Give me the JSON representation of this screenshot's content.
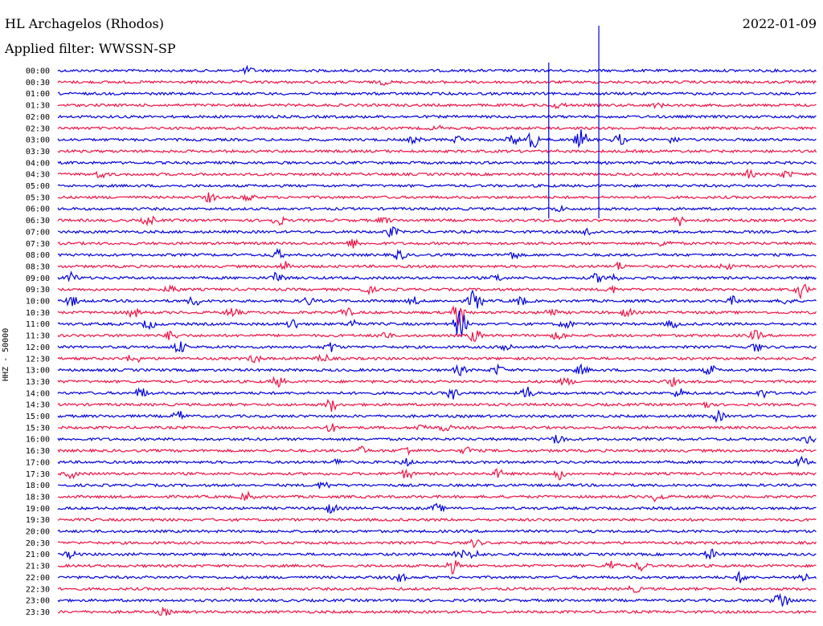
{
  "header": {
    "station": "HL Archagelos (Rhodos)",
    "date": "2022-01-09",
    "filter": "Applied filter: WWSSN-SP"
  },
  "channel_label": "HHZ - 50000",
  "colors": {
    "even_trace": "#0000dd",
    "odd_trace": "#ee1144",
    "text": "#000000"
  },
  "chart_data": {
    "type": "line",
    "title": "HL Archagelos (Rhodos)",
    "subtitle": "Applied filter: WWSSN-SP",
    "ylabel": "HHZ - 50000",
    "xlabel": "",
    "trace_interval_minutes": 30,
    "categories": [
      "00:00",
      "00:30",
      "01:00",
      "01:30",
      "02:00",
      "02:30",
      "03:00",
      "03:30",
      "04:00",
      "04:30",
      "05:00",
      "05:30",
      "06:00",
      "06:30",
      "07:00",
      "07:30",
      "08:00",
      "08:30",
      "09:00",
      "09:30",
      "10:00",
      "10:30",
      "11:00",
      "11:30",
      "12:00",
      "12:30",
      "13:00",
      "13:30",
      "14:00",
      "14:30",
      "15:00",
      "15:30",
      "16:00",
      "16:30",
      "17:00",
      "17:30",
      "18:00",
      "18:30",
      "19:00",
      "19:30",
      "20:00",
      "20:30",
      "21:00",
      "21:30",
      "22:00",
      "22:30",
      "23:00",
      "23:30"
    ],
    "series": [
      {
        "name": "00:00",
        "events": [
          [
            0.25,
            1.0
          ]
        ]
      },
      {
        "name": "00:30",
        "events": [
          [
            0.43,
            0.6
          ]
        ]
      },
      {
        "name": "01:00",
        "events": []
      },
      {
        "name": "01:30",
        "events": [
          [
            0.66,
            0.9
          ],
          [
            0.79,
            0.6
          ]
        ]
      },
      {
        "name": "02:00",
        "events": []
      },
      {
        "name": "02:30",
        "events": [
          [
            0.5,
            0.6
          ]
        ]
      },
      {
        "name": "03:00",
        "events": [
          [
            0.47,
            1.0
          ],
          [
            0.53,
            1.2
          ],
          [
            0.6,
            1.5
          ],
          [
            0.625,
            3.0
          ],
          [
            0.69,
            3.0
          ],
          [
            0.74,
            1.6
          ],
          [
            0.81,
            0.9
          ]
        ]
      },
      {
        "name": "03:30",
        "events": []
      },
      {
        "name": "04:00",
        "events": []
      },
      {
        "name": "04:30",
        "events": [
          [
            0.057,
            1.2
          ],
          [
            0.91,
            1.2
          ],
          [
            0.96,
            1.1
          ]
        ]
      },
      {
        "name": "05:00",
        "events": []
      },
      {
        "name": "05:30",
        "events": [
          [
            0.2,
            1.4
          ],
          [
            0.25,
            1.2
          ]
        ]
      },
      {
        "name": "06:00",
        "events": [
          [
            0.66,
            0.8
          ]
        ]
      },
      {
        "name": "06:30",
        "events": [
          [
            0.12,
            1.5
          ],
          [
            0.29,
            1.6
          ],
          [
            0.43,
            0.9
          ],
          [
            0.82,
            1.5
          ]
        ]
      },
      {
        "name": "07:00",
        "events": [
          [
            0.44,
            1.6
          ],
          [
            0.7,
            1.2
          ]
        ]
      },
      {
        "name": "07:30",
        "events": [
          [
            0.39,
            1.4
          ],
          [
            0.8,
            1.1
          ]
        ]
      },
      {
        "name": "08:00",
        "events": [
          [
            0.29,
            1.4
          ],
          [
            0.45,
            1.6
          ],
          [
            0.6,
            1.2
          ]
        ]
      },
      {
        "name": "08:30",
        "events": [
          [
            0.3,
            1.5
          ],
          [
            0.74,
            1.2
          ],
          [
            0.88,
            1.0
          ]
        ]
      },
      {
        "name": "09:00",
        "events": [
          [
            0.018,
            1.6
          ],
          [
            0.29,
            2.0
          ],
          [
            0.58,
            1.0
          ],
          [
            0.71,
            1.3
          ],
          [
            0.73,
            1.4
          ]
        ]
      },
      {
        "name": "09:30",
        "events": [
          [
            0.15,
            1.3
          ],
          [
            0.41,
            1.0
          ],
          [
            0.73,
            1.0
          ],
          [
            0.98,
            2.5
          ]
        ]
      },
      {
        "name": "10:00",
        "events": [
          [
            0.018,
            1.6
          ],
          [
            0.18,
            1.5
          ],
          [
            0.33,
            1.2
          ],
          [
            0.47,
            1.1
          ],
          [
            0.55,
            4.0
          ],
          [
            0.61,
            1.4
          ],
          [
            0.89,
            1.2
          ],
          [
            0.96,
            1.1
          ]
        ]
      },
      {
        "name": "10:30",
        "events": [
          [
            0.1,
            1.5
          ],
          [
            0.23,
            1.5
          ],
          [
            0.38,
            1.4
          ],
          [
            0.53,
            5.0
          ],
          [
            0.65,
            1.3
          ],
          [
            0.75,
            1.3
          ]
        ]
      },
      {
        "name": "11:00",
        "events": [
          [
            0.12,
            1.5
          ],
          [
            0.31,
            1.8
          ],
          [
            0.39,
            1.2
          ],
          [
            0.53,
            5.0
          ],
          [
            0.67,
            1.4
          ],
          [
            0.81,
            1.2
          ]
        ]
      },
      {
        "name": "11:30",
        "events": [
          [
            0.15,
            1.6
          ],
          [
            0.43,
            1.2
          ],
          [
            0.55,
            2.0
          ],
          [
            0.66,
            1.5
          ],
          [
            0.92,
            1.4
          ]
        ]
      },
      {
        "name": "12:00",
        "events": [
          [
            0.16,
            2.0
          ],
          [
            0.36,
            1.6
          ],
          [
            0.59,
            1.6
          ],
          [
            0.92,
            1.4
          ]
        ]
      },
      {
        "name": "12:30",
        "events": [
          [
            0.1,
            1.6
          ],
          [
            0.26,
            1.2
          ],
          [
            0.35,
            1.4
          ]
        ]
      },
      {
        "name": "13:00",
        "events": [
          [
            0.53,
            1.4
          ],
          [
            0.58,
            1.4
          ],
          [
            0.69,
            1.4
          ],
          [
            0.86,
            1.5
          ]
        ]
      },
      {
        "name": "13:30",
        "events": [
          [
            0.29,
            1.6
          ],
          [
            0.67,
            1.2
          ],
          [
            0.81,
            1.2
          ]
        ]
      },
      {
        "name": "14:00",
        "events": [
          [
            0.11,
            1.6
          ],
          [
            0.52,
            1.8
          ],
          [
            0.62,
            2.0
          ],
          [
            0.82,
            1.4
          ],
          [
            0.93,
            1.3
          ]
        ]
      },
      {
        "name": "14:30",
        "events": [
          [
            0.36,
            2.0
          ],
          [
            0.85,
            1.6
          ]
        ]
      },
      {
        "name": "15:00",
        "events": [
          [
            0.16,
            1.5
          ],
          [
            0.87,
            1.6
          ]
        ]
      },
      {
        "name": "15:30",
        "events": [
          [
            0.36,
            1.3
          ],
          [
            0.48,
            1.3
          ],
          [
            0.51,
            1.1
          ]
        ]
      },
      {
        "name": "16:00",
        "events": [
          [
            0.66,
            1.8
          ],
          [
            0.99,
            1.2
          ]
        ]
      },
      {
        "name": "16:30",
        "events": [
          [
            0.4,
            1.1
          ],
          [
            0.46,
            1.3
          ],
          [
            0.54,
            1.0
          ]
        ]
      },
      {
        "name": "17:00",
        "events": [
          [
            0.37,
            1.0
          ],
          [
            0.46,
            1.0
          ],
          [
            0.98,
            1.6
          ]
        ]
      },
      {
        "name": "17:30",
        "events": [
          [
            0.018,
            1.2
          ],
          [
            0.46,
            1.6
          ],
          [
            0.58,
            1.3
          ],
          [
            0.66,
            1.8
          ]
        ]
      },
      {
        "name": "18:00",
        "events": [
          [
            0.35,
            1.2
          ]
        ]
      },
      {
        "name": "18:30",
        "events": [
          [
            0.25,
            1.4
          ],
          [
            0.79,
            1.5
          ]
        ]
      },
      {
        "name": "19:00",
        "events": [
          [
            0.36,
            1.5
          ],
          [
            0.5,
            1.2
          ]
        ]
      },
      {
        "name": "19:30",
        "events": []
      },
      {
        "name": "20:00",
        "events": []
      },
      {
        "name": "20:30",
        "events": [
          [
            0.55,
            1.2
          ]
        ]
      },
      {
        "name": "21:00",
        "events": [
          [
            0.018,
            1.1
          ],
          [
            0.53,
            1.4
          ],
          [
            0.55,
            1.4
          ],
          [
            0.86,
            1.6
          ]
        ]
      },
      {
        "name": "21:30",
        "events": [
          [
            0.52,
            2.2
          ],
          [
            0.73,
            1.6
          ],
          [
            0.77,
            1.5
          ]
        ]
      },
      {
        "name": "22:00",
        "events": [
          [
            0.45,
            1.4
          ],
          [
            0.9,
            1.6
          ],
          [
            0.98,
            1.5
          ]
        ]
      },
      {
        "name": "22:30",
        "events": [
          [
            0.76,
            1.0
          ]
        ]
      },
      {
        "name": "23:00",
        "events": [
          [
            0.95,
            2.2
          ],
          [
            0.96,
            1.4
          ]
        ]
      },
      {
        "name": "23:30",
        "events": [
          [
            0.14,
            1.1
          ]
        ]
      }
    ]
  }
}
